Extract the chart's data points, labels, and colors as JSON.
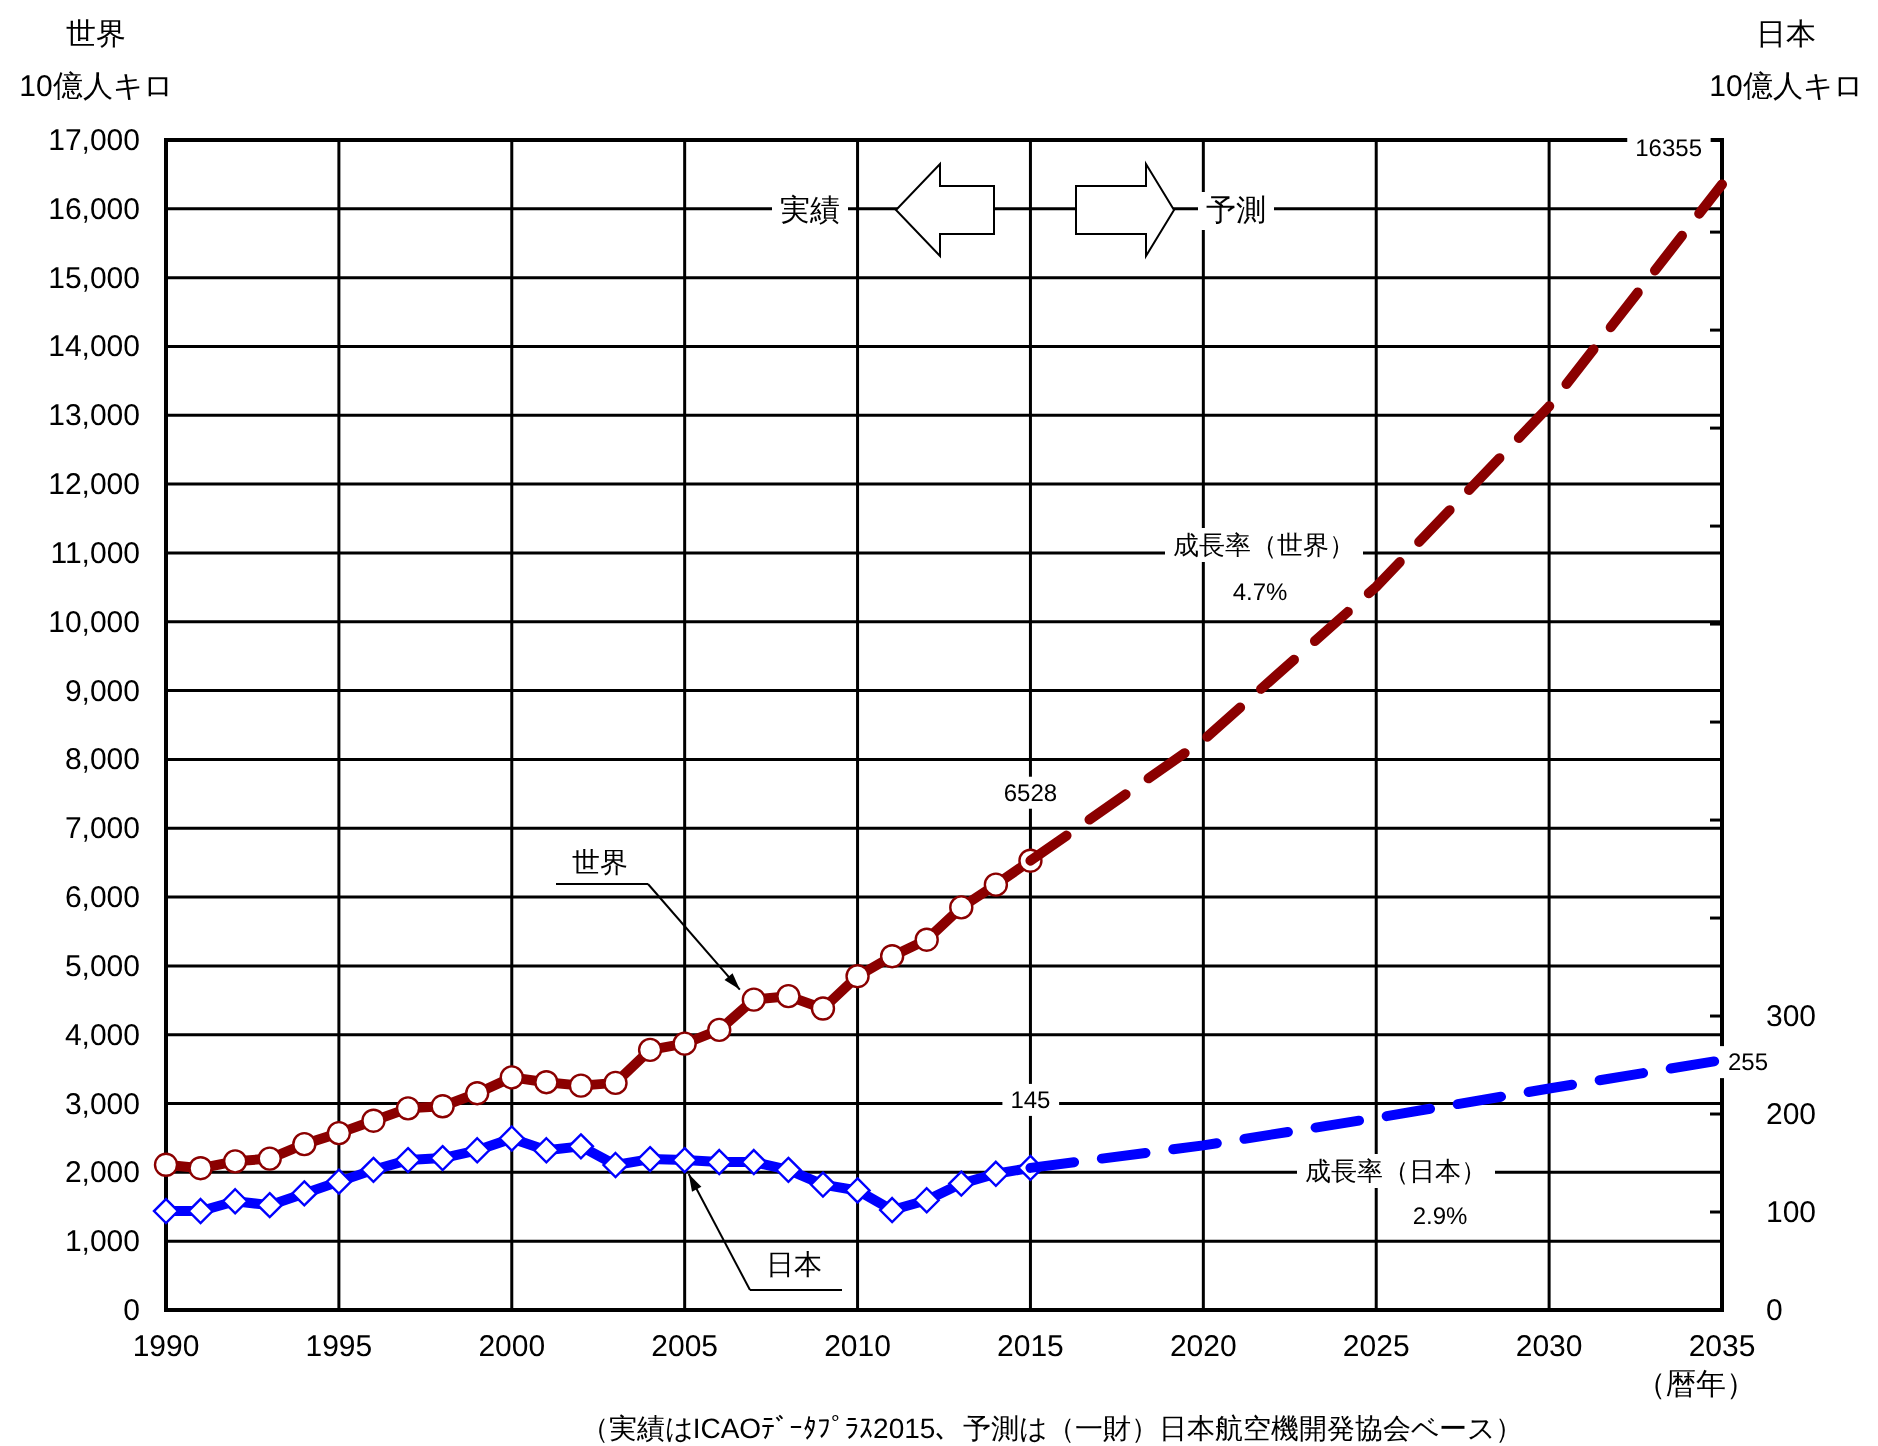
{
  "chart_data": {
    "type": "line",
    "ylabel": "世界\n10億人キロ",
    "y2label": "日本\n10億人キロ",
    "xlabel": "（暦年）",
    "xlim": [
      1990,
      2035
    ],
    "xticks": [
      1990,
      1995,
      2000,
      2005,
      2010,
      2015,
      2020,
      2025,
      2030,
      2035
    ],
    "ylim": [
      0,
      17000
    ],
    "yticks": [
      0,
      {
        "value": 1000,
        "label": "1,000"
      },
      {
        "value": 2000,
        "label": "2,000"
      },
      {
        "value": 3000,
        "label": "3,000"
      },
      {
        "value": 4000,
        "label": "4,000"
      },
      {
        "value": 5000,
        "label": "5,000"
      },
      {
        "value": 6000,
        "label": "6,000"
      },
      {
        "value": 7000,
        "label": "7,000"
      },
      {
        "value": 8000,
        "label": "8,000"
      },
      {
        "value": 9000,
        "label": "9,000"
      },
      {
        "value": 10000,
        "label": "10,000"
      },
      {
        "value": 11000,
        "label": "11,000"
      },
      {
        "value": 12000,
        "label": "12,000"
      },
      {
        "value": 13000,
        "label": "13,000"
      },
      {
        "value": 14000,
        "label": "14,000"
      },
      {
        "value": 15000,
        "label": "15,000"
      },
      {
        "value": 16000,
        "label": "16,000"
      },
      {
        "value": 17000,
        "label": "17,000"
      }
    ],
    "y2lim": [
      0,
      1194
    ],
    "y2ticks": [
      0,
      100,
      200,
      300,
      {
        "value": 400,
        "label": null
      },
      {
        "value": 500,
        "label": null
      },
      {
        "value": 600,
        "label": null
      },
      {
        "value": 700,
        "label": null
      },
      {
        "value": 800,
        "label": null
      },
      {
        "value": 900,
        "label": null
      },
      {
        "value": 1000,
        "label": null
      },
      {
        "value": 1100,
        "label": null
      }
    ],
    "grid": true,
    "series": [
      {
        "name": "世界",
        "color": "#8b0000",
        "marker": "circle",
        "line_style": "solid",
        "x": [
          1990,
          1991,
          1992,
          1993,
          1994,
          1995,
          1996,
          1997,
          1998,
          1999,
          2000,
          2001,
          2002,
          2003,
          2004,
          2005,
          2006,
          2007,
          2008,
          2009,
          2010,
          2011,
          2012,
          2013,
          2014,
          2015
        ],
        "values": [
          2110,
          2060,
          2160,
          2200,
          2410,
          2570,
          2750,
          2930,
          2960,
          3150,
          3380,
          3310,
          3260,
          3300,
          3780,
          3870,
          4070,
          4510,
          4560,
          4380,
          4850,
          5140,
          5380,
          5850,
          6180,
          6528
        ],
        "value_labels": [
          null,
          null,
          null,
          null,
          null,
          null,
          null,
          null,
          null,
          null,
          null,
          null,
          null,
          null,
          null,
          null,
          null,
          null,
          null,
          null,
          null,
          null,
          null,
          null,
          null,
          "6528"
        ]
      },
      {
        "color": "#8b0000",
        "marker": "none",
        "line_style": "dashed",
        "x": [
          2015,
          2020,
          2025,
          2030,
          2035
        ],
        "values": [
          6528,
          8280,
          10510,
          13130,
          16355
        ],
        "value_labels": [
          null,
          null,
          null,
          null,
          "16355"
        ]
      },
      {
        "name": "日本",
        "axis": "y2",
        "color": "#0000ff",
        "marker": "diamond",
        "line_style": "solid",
        "x": [
          1990,
          1991,
          1992,
          1993,
          1994,
          1995,
          1996,
          1997,
          1998,
          1999,
          2000,
          2001,
          2002,
          2003,
          2004,
          2005,
          2006,
          2007,
          2008,
          2009,
          2010,
          2011,
          2012,
          2013,
          2014,
          2015
        ],
        "values": [
          101,
          101,
          111,
          107,
          119,
          131,
          143,
          153,
          155,
          163,
          175,
          163,
          167,
          148,
          154,
          153,
          151,
          151,
          143,
          128,
          122,
          102,
          112,
          129,
          139,
          145
        ],
        "value_labels": [
          null,
          null,
          null,
          null,
          null,
          null,
          null,
          null,
          null,
          null,
          null,
          null,
          null,
          null,
          null,
          null,
          null,
          null,
          null,
          null,
          null,
          null,
          null,
          null,
          null,
          "145"
        ]
      },
      {
        "axis": "y2",
        "color": "#0000ff",
        "marker": "none",
        "line_style": "dashed",
        "x": [
          2015,
          2020,
          2025,
          2030,
          2035
        ],
        "values": [
          145,
          168,
          196,
          226,
          255
        ],
        "value_labels": [
          null,
          null,
          null,
          null,
          "255"
        ]
      }
    ],
    "annotations": [
      "実績",
      "予測",
      "成長率（世界）",
      "4.7%",
      "成長率（日本）",
      "2.9%",
      "（実績はICAOﾃﾞｰﾀﾌﾟﾗｽ2015、予測は（一財）日本航空機開発協会ベース）"
    ]
  }
}
